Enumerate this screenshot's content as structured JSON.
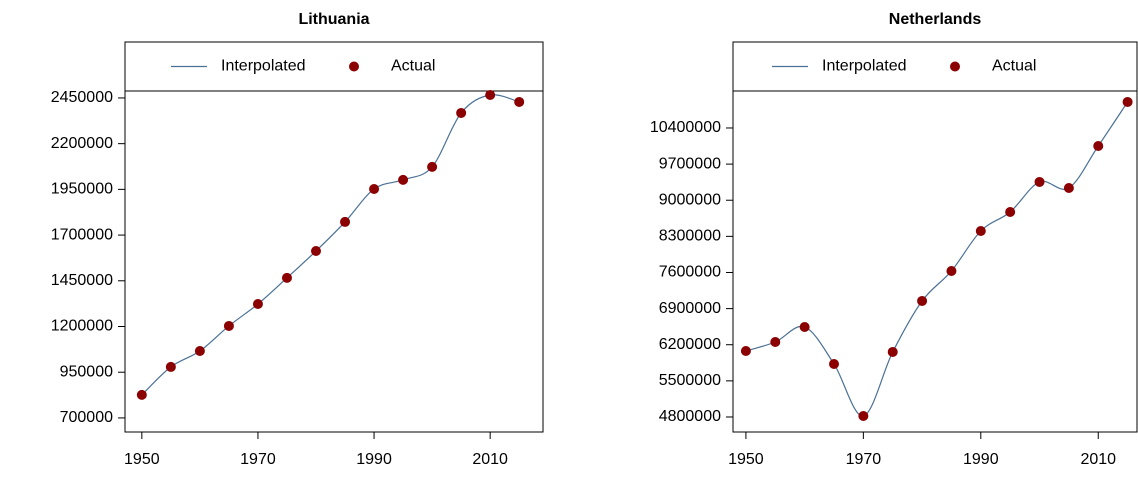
{
  "chart_data": [
    {
      "type": "line",
      "title": "Lithuania",
      "x": [
        1950,
        1955,
        1960,
        1965,
        1970,
        1975,
        1980,
        1985,
        1990,
        1995,
        2000,
        2005,
        2010,
        2015
      ],
      "interpolation": {
        "name": "Interpolated",
        "color": "#4a7196"
      },
      "series": [
        {
          "name": "Actual",
          "color": "#8b0000",
          "values": [
            826000,
            979000,
            1066000,
            1203000,
            1323000,
            1466000,
            1613000,
            1772000,
            1952000,
            2002000,
            2073000,
            2368000,
            2466000,
            2428000
          ]
        }
      ],
      "xlim": [
        1947.1,
        2019.1
      ],
      "xticks": [
        1950,
        1970,
        1990,
        2010
      ],
      "ylim": [
        623000,
        2756000
      ],
      "yticks": [
        700000,
        950000,
        1200000,
        1450000,
        1700000,
        1950000,
        2200000,
        2450000
      ]
    },
    {
      "type": "line",
      "title": "Netherlands",
      "x": [
        1950,
        1955,
        1960,
        1965,
        1970,
        1975,
        1980,
        1985,
        1990,
        1995,
        2000,
        2005,
        2010,
        2015
      ],
      "interpolation": {
        "name": "Interpolated",
        "color": "#4a7196"
      },
      "series": [
        {
          "name": "Actual",
          "color": "#8b0000",
          "values": [
            6079000,
            6253000,
            6544000,
            5827000,
            4819000,
            6060000,
            7048000,
            7629000,
            8404000,
            8772000,
            9354000,
            9237000,
            10051000,
            10904000
          ]
        }
      ],
      "xlim": [
        1947.8,
        2016.6
      ],
      "xticks": [
        1950,
        1970,
        1990,
        2010
      ],
      "ylim": [
        4509000,
        12066000
      ],
      "yticks": [
        4800000,
        5500000,
        6200000,
        6900000,
        7600000,
        8300000,
        9000000,
        9700000,
        10400000
      ]
    }
  ]
}
